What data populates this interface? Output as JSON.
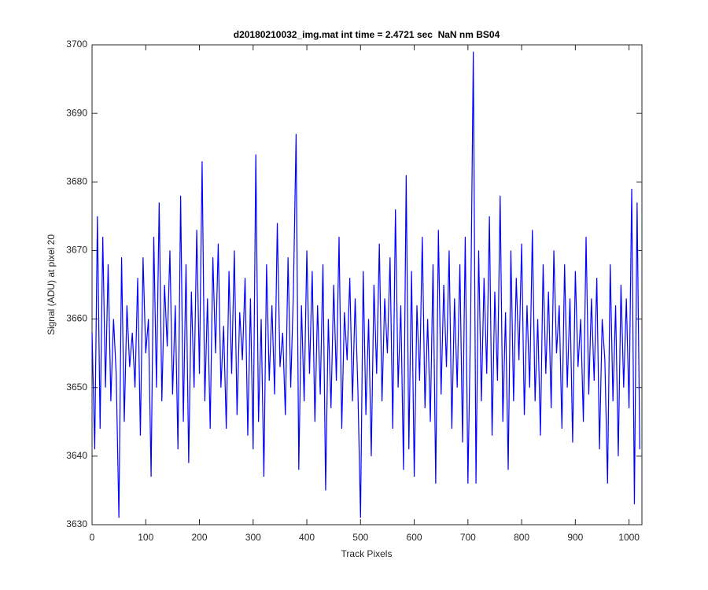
{
  "chart_data": {
    "type": "line",
    "title": "d20180210032_img.mat int time = 2.4721 sec  NaN nm BS04",
    "xlabel": "Track Pixels",
    "ylabel": "Signal (ADU) at pixel 20",
    "xlim": [
      0,
      1024
    ],
    "ylim": [
      3630,
      3700
    ],
    "xticks": [
      0,
      100,
      200,
      300,
      400,
      500,
      600,
      700,
      800,
      900,
      1000
    ],
    "yticks": [
      3630,
      3640,
      3650,
      3660,
      3670,
      3680,
      3690,
      3700
    ],
    "grid": false,
    "x": [
      0,
      5,
      10,
      15,
      20,
      25,
      30,
      35,
      40,
      45,
      50,
      55,
      60,
      65,
      70,
      75,
      80,
      85,
      90,
      95,
      100,
      105,
      110,
      115,
      120,
      125,
      130,
      135,
      140,
      145,
      150,
      155,
      160,
      165,
      170,
      175,
      180,
      185,
      190,
      195,
      200,
      205,
      210,
      215,
      220,
      225,
      230,
      235,
      240,
      245,
      250,
      255,
      260,
      265,
      270,
      275,
      280,
      285,
      290,
      295,
      300,
      305,
      310,
      315,
      320,
      325,
      330,
      335,
      340,
      345,
      350,
      355,
      360,
      365,
      370,
      375,
      380,
      385,
      390,
      395,
      400,
      405,
      410,
      415,
      420,
      425,
      430,
      435,
      440,
      445,
      450,
      455,
      460,
      465,
      470,
      475,
      480,
      485,
      490,
      495,
      500,
      505,
      510,
      515,
      520,
      525,
      530,
      535,
      540,
      545,
      550,
      555,
      560,
      565,
      570,
      575,
      580,
      585,
      590,
      595,
      600,
      605,
      610,
      615,
      620,
      625,
      630,
      635,
      640,
      645,
      650,
      655,
      660,
      665,
      670,
      675,
      680,
      685,
      690,
      695,
      700,
      705,
      710,
      715,
      720,
      725,
      730,
      735,
      740,
      745,
      750,
      755,
      760,
      765,
      770,
      775,
      780,
      785,
      790,
      795,
      800,
      805,
      810,
      815,
      820,
      825,
      830,
      835,
      840,
      845,
      850,
      855,
      860,
      865,
      870,
      875,
      880,
      885,
      890,
      895,
      900,
      905,
      910,
      915,
      920,
      925,
      930,
      935,
      940,
      945,
      950,
      955,
      960,
      965,
      970,
      975,
      980,
      985,
      990,
      995,
      1000,
      1005,
      1010,
      1015,
      1020
    ],
    "series": [
      {
        "name": "signal",
        "color": "#0000ff",
        "values": [
          3658,
          3641,
          3675,
          3644,
          3672,
          3650,
          3668,
          3648,
          3660,
          3652,
          3631,
          3669,
          3645,
          3662,
          3653,
          3658,
          3650,
          3666,
          3643,
          3669,
          3655,
          3660,
          3637,
          3672,
          3650,
          3677,
          3648,
          3665,
          3656,
          3670,
          3649,
          3662,
          3641,
          3678,
          3645,
          3668,
          3639,
          3664,
          3650,
          3673,
          3652,
          3683,
          3648,
          3663,
          3644,
          3669,
          3655,
          3671,
          3650,
          3659,
          3644,
          3667,
          3652,
          3670,
          3646,
          3661,
          3654,
          3666,
          3643,
          3663,
          3641,
          3684,
          3645,
          3660,
          3637,
          3668,
          3651,
          3662,
          3649,
          3674,
          3653,
          3658,
          3646,
          3669,
          3650,
          3664,
          3687,
          3638,
          3662,
          3648,
          3670,
          3652,
          3667,
          3645,
          3662,
          3649,
          3668,
          3635,
          3660,
          3647,
          3665,
          3651,
          3672,
          3644,
          3661,
          3654,
          3666,
          3648,
          3663,
          3650,
          3631,
          3667,
          3646,
          3660,
          3640,
          3665,
          3652,
          3671,
          3648,
          3663,
          3655,
          3669,
          3644,
          3676,
          3650,
          3662,
          3638,
          3681,
          3641,
          3667,
          3637,
          3662,
          3651,
          3672,
          3647,
          3660,
          3645,
          3668,
          3636,
          3673,
          3649,
          3665,
          3653,
          3670,
          3644,
          3663,
          3650,
          3668,
          3642,
          3672,
          3636,
          3660,
          3699,
          3636,
          3670,
          3648,
          3666,
          3652,
          3675,
          3643,
          3664,
          3651,
          3678,
          3645,
          3661,
          3638,
          3670,
          3648,
          3666,
          3654,
          3671,
          3646,
          3662,
          3650,
          3673,
          3648,
          3660,
          3643,
          3668,
          3652,
          3664,
          3647,
          3670,
          3655,
          3662,
          3644,
          3668,
          3650,
          3663,
          3642,
          3667,
          3653,
          3660,
          3645,
          3672,
          3649,
          3663,
          3651,
          3666,
          3641,
          3660,
          3654,
          3636,
          3668,
          3648,
          3662,
          3640,
          3665,
          3650,
          3663,
          3647,
          3679,
          3633,
          3677,
          3641
        ]
      }
    ]
  }
}
